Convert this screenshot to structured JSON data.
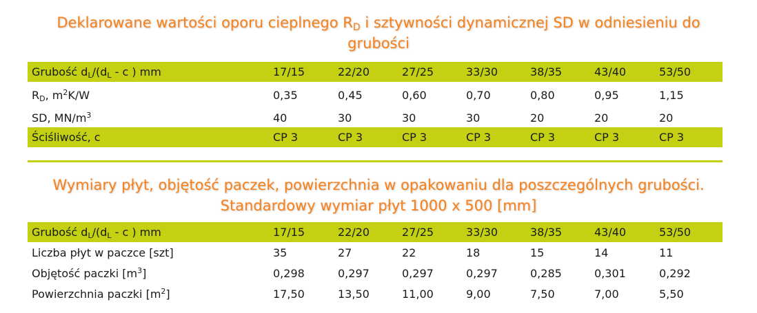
{
  "colors": {
    "title": "#f5821f",
    "highlight": "#c3d112"
  },
  "section1": {
    "title_part1": "Deklarowane wartości oporu cieplnego R",
    "title_sub": "D",
    "title_part2": " i sztywności dynamicznej SD w odniesieniu do",
    "title_line2": "grubości",
    "header": {
      "label_a": "Grubość d",
      "label_sub1": "L",
      "label_b": "/(d",
      "label_sub2": "L",
      "label_c": " - c ) mm",
      "values": [
        "17/15",
        "22/20",
        "27/25",
        "33/30",
        "38/35",
        "43/40",
        "53/50"
      ]
    },
    "rd": {
      "label_a": "R",
      "label_sub": "D",
      "label_b": ", m",
      "label_sup": "2",
      "label_c": "K/W",
      "values": [
        "0,35",
        "0,45",
        "0,60",
        "0,70",
        "0,80",
        "0,95",
        "1,15"
      ]
    },
    "sd": {
      "label_a": "SD, MN/m",
      "label_sup": "3",
      "values": [
        "40",
        "30",
        "30",
        "30",
        "20",
        "20",
        "20"
      ]
    },
    "comp": {
      "label": "Ściśliwość, c",
      "values": [
        "CP 3",
        "CP 3",
        "CP 3",
        "CP 3",
        "CP 3",
        "CP 3",
        "CP 3"
      ]
    }
  },
  "section2": {
    "title_line1": "Wymiary płyt, objętość paczek, powierzchnia w opakowaniu dla poszczególnych grubości.",
    "title_line2": "Standardowy wymiar płyt 1000 x 500 [mm]",
    "header": {
      "label_a": "Grubość d",
      "label_sub1": "L",
      "label_b": "/(d",
      "label_sub2": "L",
      "label_c": " - c ) mm",
      "values": [
        "17/15",
        "22/20",
        "27/25",
        "33/30",
        "38/35",
        "43/40",
        "53/50"
      ]
    },
    "count": {
      "label": "Liczba płyt w paczce [szt]",
      "values": [
        "35",
        "27",
        "22",
        "18",
        "15",
        "14",
        "11"
      ]
    },
    "volume": {
      "label_a": "Objętość paczki [m",
      "label_sup": "3",
      "label_b": "]",
      "values": [
        "0,298",
        "0,297",
        "0,297",
        "0,297",
        "0,285",
        "0,301",
        "0,292"
      ]
    },
    "area": {
      "label_a": "Powierzchnia paczki [m",
      "label_sup": "2",
      "label_b": "]",
      "values": [
        "17,50",
        "13,50",
        "11,00",
        "9,00",
        "7,50",
        "7,00",
        "5,50"
      ]
    }
  }
}
